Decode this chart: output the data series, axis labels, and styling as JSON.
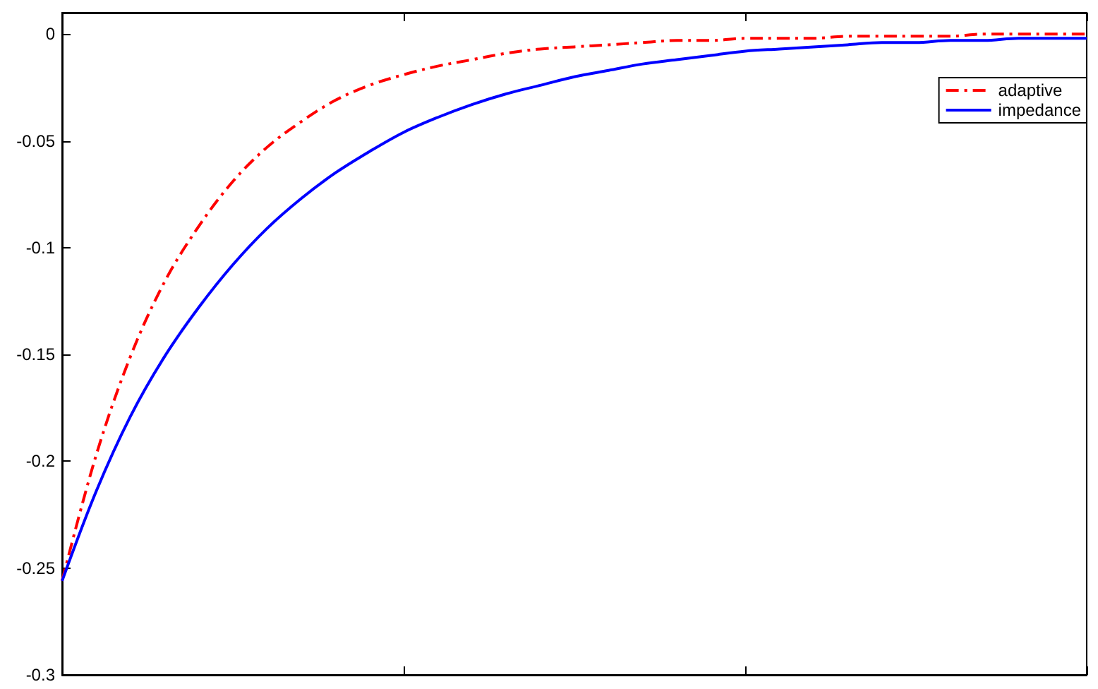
{
  "chart_data": {
    "type": "line",
    "categories": [
      null,
      null,
      null,
      null,
      null,
      null,
      null,
      null,
      null,
      null,
      null,
      null,
      null,
      null,
      null,
      null,
      null,
      null,
      null,
      null,
      null,
      null,
      null,
      null,
      null,
      null,
      null,
      null,
      null,
      null,
      null
    ],
    "series": [
      {
        "name": "adaptive",
        "color": "#ff0000",
        "line_style": "dashed",
        "values": [
          -0.256,
          -0.197,
          -0.151,
          -0.116,
          -0.09,
          -0.069,
          -0.053,
          -0.041,
          -0.031,
          -0.024,
          -0.019,
          -0.015,
          -0.012,
          -0.009,
          -0.007,
          -0.006,
          -0.005,
          -0.004,
          -0.003,
          -0.003,
          -0.002,
          -0.002,
          -0.002,
          -0.001,
          -0.001,
          -0.001,
          -0.001,
          0,
          0,
          0,
          0
        ]
      },
      {
        "name": "impedance",
        "color": "#0000ff",
        "line_style": "solid",
        "values": [
          -0.256,
          -0.214,
          -0.179,
          -0.151,
          -0.128,
          -0.108,
          -0.091,
          -0.077,
          -0.065,
          -0.055,
          -0.046,
          -0.039,
          -0.033,
          -0.028,
          -0.024,
          -0.02,
          -0.017,
          -0.014,
          -0.012,
          -0.01,
          -0.008,
          -0.007,
          -0.006,
          -0.005,
          -0.004,
          -0.004,
          -0.003,
          -0.003,
          -0.002,
          -0.002,
          -0.002
        ]
      }
    ],
    "ylim": [
      -0.3,
      0.01
    ],
    "yticks": [
      -0.3,
      -0.25,
      -0.2,
      -0.15,
      -0.1,
      -0.05,
      0
    ],
    "grid": false,
    "legend": "top right",
    "marker": "none",
    "tick_labels": "y"
  }
}
